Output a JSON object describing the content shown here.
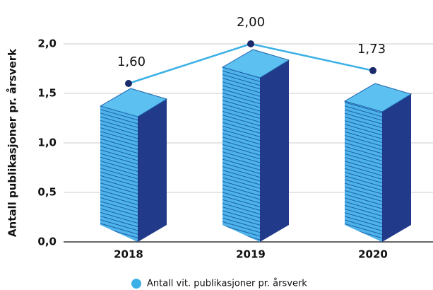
{
  "chart_data": {
    "type": "line",
    "y_label": "Antall  publikasjoner pr. årsverk",
    "categories": [
      "2018",
      "2019",
      "2020"
    ],
    "series": [
      {
        "name": "Antall vit.  publikasjoner pr. årsverk",
        "color": "#3ab0e6",
        "marker_color": "#1b2a6b",
        "values": [
          1.6,
          2.0,
          1.73
        ],
        "value_labels": [
          "1,60",
          "2,00",
          "1,73"
        ]
      }
    ],
    "ylim": [
      0,
      2
    ],
    "yticks": [
      {
        "value": 0,
        "label": "0,0"
      },
      {
        "value": 0.5,
        "label": "0,5"
      },
      {
        "value": 1,
        "label": "1,0"
      },
      {
        "value": 1.5,
        "label": "1,5"
      },
      {
        "value": 2,
        "label": "2,0"
      }
    ],
    "grid": true
  }
}
